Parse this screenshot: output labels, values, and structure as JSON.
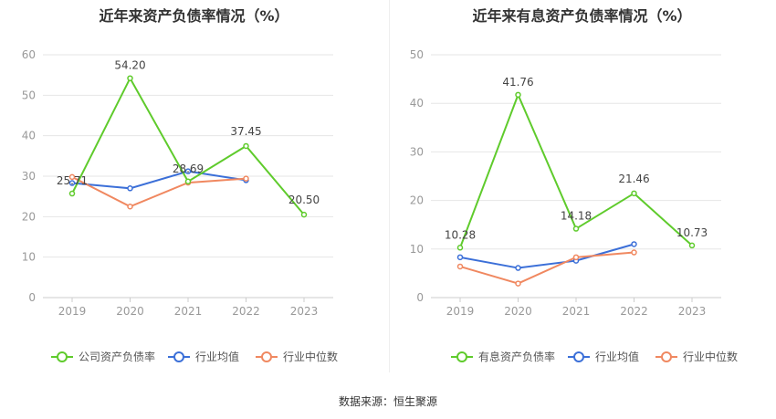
{
  "footer": {
    "source": "数据来源：恒生聚源"
  },
  "chart_data": [
    {
      "type": "line",
      "title": "近年来资产负债率情况（%）",
      "categories": [
        "2019",
        "2020",
        "2021",
        "2022",
        "2023"
      ],
      "ylim": [
        0,
        60
      ],
      "yticks": [
        0,
        10,
        20,
        30,
        40,
        50,
        60
      ],
      "grid": true,
      "legend_position": "bottom",
      "series": [
        {
          "name": "公司资产负债率",
          "color": "#5fcb2c",
          "values": [
            25.71,
            54.2,
            28.69,
            37.45,
            20.5
          ],
          "labels": [
            "25.71",
            "54.20",
            "28.69",
            "37.45",
            "20.50"
          ]
        },
        {
          "name": "行业均值",
          "color": "#3b6fd8",
          "values": [
            28.3,
            27.0,
            31.2,
            29.0,
            null
          ]
        },
        {
          "name": "行业中位数",
          "color": "#f08860",
          "values": [
            29.8,
            22.5,
            28.4,
            29.4,
            null
          ]
        }
      ]
    },
    {
      "type": "line",
      "title": "近年来有息资产负债率情况（%）",
      "categories": [
        "2019",
        "2020",
        "2021",
        "2022",
        "2023"
      ],
      "ylim": [
        0,
        50
      ],
      "yticks": [
        0,
        10,
        20,
        30,
        40,
        50
      ],
      "grid": true,
      "legend_position": "bottom",
      "series": [
        {
          "name": "有息资产负债率",
          "color": "#5fcb2c",
          "values": [
            10.28,
            41.76,
            14.18,
            21.46,
            10.73
          ],
          "labels": [
            "10.28",
            "41.76",
            "14.18",
            "21.46",
            "10.73"
          ]
        },
        {
          "name": "行业均值",
          "color": "#3b6fd8",
          "values": [
            8.3,
            6.1,
            7.6,
            11.0,
            null
          ]
        },
        {
          "name": "行业中位数",
          "color": "#f08860",
          "values": [
            6.4,
            2.9,
            8.3,
            9.3,
            null
          ]
        }
      ]
    }
  ]
}
